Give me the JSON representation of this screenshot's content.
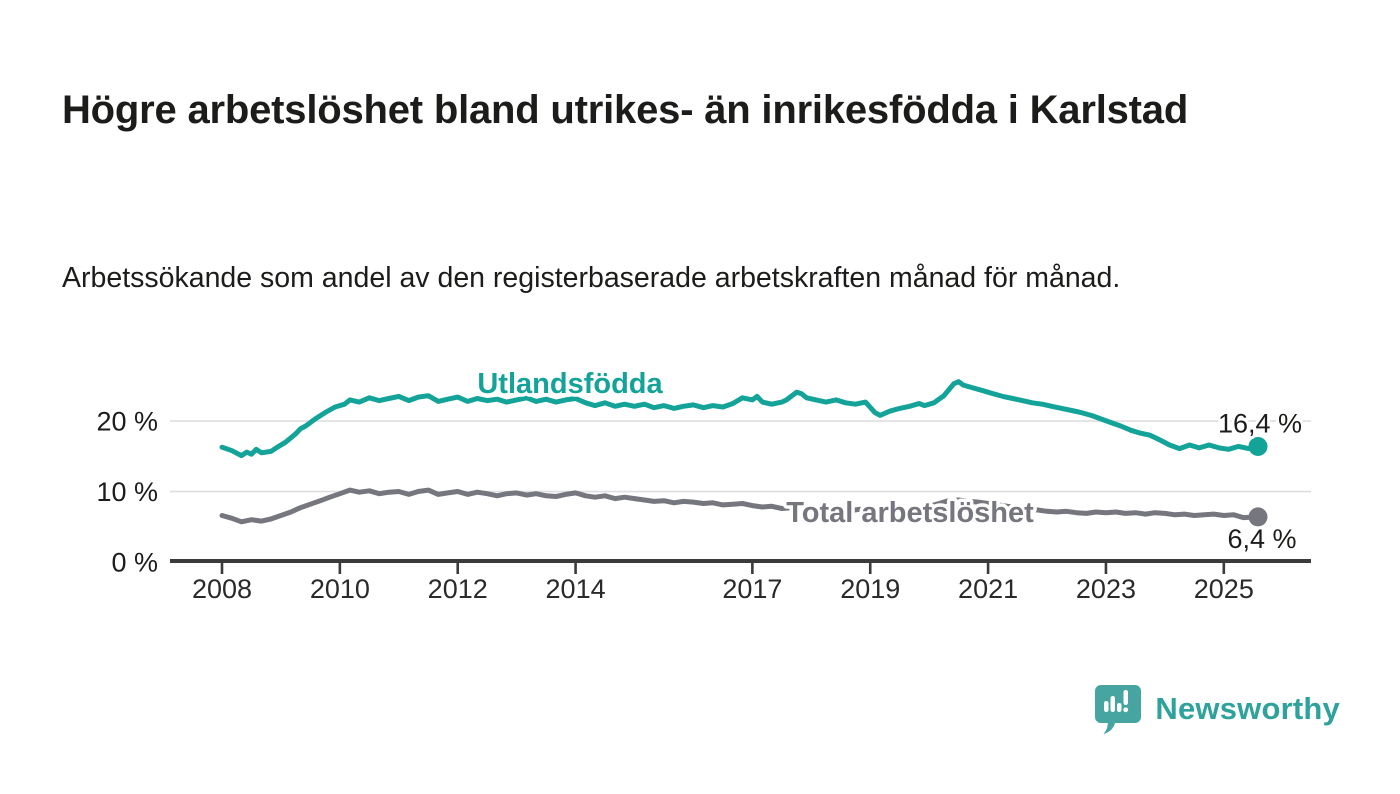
{
  "header": {
    "title": "Högre arbetslöshet bland utrikes- än inrikesfödda i Karlstad",
    "subtitle": "Arbetssökande som andel av den registerbaserade arbetskraften månad för månad."
  },
  "footer": {
    "brand": "Newsworthy",
    "logo_icon": "speech-bubble-bar-chart-icon"
  },
  "colors": {
    "accent_teal": "#14a399",
    "series_gray": "#76767e",
    "grid": "#dedee1",
    "axis": "#3b3b3b",
    "text": "#1c1c1a",
    "brand_icon": "#46a5a0",
    "brand_text": "#2ea29b"
  },
  "chart_data": {
    "type": "line",
    "title": "Högre arbetslöshet bland utrikes- än inrikesfödda i Karlstad",
    "subtitle": "Arbetssökande som andel av den registerbaserade arbetskraften månad för månad.",
    "xlabel": "",
    "ylabel": "",
    "unit": "%",
    "xlim": [
      2007.1,
      2026.5
    ],
    "ylim": [
      0,
      27
    ],
    "grid": "horizontal",
    "legend_position": "inline-labels",
    "x_ticks": [
      2008,
      2010,
      2012,
      2014,
      2017,
      2019,
      2021,
      2023,
      2025
    ],
    "y_ticks": [
      {
        "value": 0,
        "label": "0 %"
      },
      {
        "value": 10,
        "label": "10 %"
      },
      {
        "value": 20,
        "label": "20 %"
      }
    ],
    "series": [
      {
        "name": "Utlandsfödda",
        "color": "#14a399",
        "end_value": 16.4,
        "end_label": "16,4 %",
        "points": [
          [
            2008.0,
            16.3
          ],
          [
            2008.17,
            15.8
          ],
          [
            2008.33,
            15.1
          ],
          [
            2008.42,
            15.6
          ],
          [
            2008.5,
            15.3
          ],
          [
            2008.58,
            16.0
          ],
          [
            2008.67,
            15.5
          ],
          [
            2008.83,
            15.7
          ],
          [
            2008.92,
            16.2
          ],
          [
            2009.08,
            17.0
          ],
          [
            2009.25,
            18.2
          ],
          [
            2009.33,
            18.9
          ],
          [
            2009.42,
            19.3
          ],
          [
            2009.58,
            20.3
          ],
          [
            2009.75,
            21.2
          ],
          [
            2009.92,
            22.0
          ],
          [
            2010.08,
            22.4
          ],
          [
            2010.17,
            23.0
          ],
          [
            2010.33,
            22.7
          ],
          [
            2010.5,
            23.3
          ],
          [
            2010.67,
            22.9
          ],
          [
            2010.83,
            23.2
          ],
          [
            2011.0,
            23.5
          ],
          [
            2011.17,
            22.9
          ],
          [
            2011.33,
            23.4
          ],
          [
            2011.5,
            23.6
          ],
          [
            2011.67,
            22.8
          ],
          [
            2011.83,
            23.1
          ],
          [
            2012.0,
            23.4
          ],
          [
            2012.17,
            22.8
          ],
          [
            2012.33,
            23.2
          ],
          [
            2012.5,
            22.9
          ],
          [
            2012.67,
            23.1
          ],
          [
            2012.83,
            22.7
          ],
          [
            2013.0,
            23.0
          ],
          [
            2013.17,
            23.3
          ],
          [
            2013.33,
            22.8
          ],
          [
            2013.5,
            23.1
          ],
          [
            2013.67,
            22.7
          ],
          [
            2013.83,
            23.0
          ],
          [
            2014.0,
            23.2
          ],
          [
            2014.17,
            22.6
          ],
          [
            2014.33,
            22.2
          ],
          [
            2014.5,
            22.6
          ],
          [
            2014.67,
            22.1
          ],
          [
            2014.83,
            22.4
          ],
          [
            2015.0,
            22.1
          ],
          [
            2015.17,
            22.4
          ],
          [
            2015.33,
            21.9
          ],
          [
            2015.5,
            22.2
          ],
          [
            2015.67,
            21.8
          ],
          [
            2015.83,
            22.1
          ],
          [
            2016.0,
            22.3
          ],
          [
            2016.17,
            21.9
          ],
          [
            2016.33,
            22.2
          ],
          [
            2016.5,
            22.0
          ],
          [
            2016.67,
            22.5
          ],
          [
            2016.83,
            23.3
          ],
          [
            2017.0,
            23.0
          ],
          [
            2017.08,
            23.5
          ],
          [
            2017.17,
            22.7
          ],
          [
            2017.33,
            22.4
          ],
          [
            2017.5,
            22.7
          ],
          [
            2017.58,
            23.0
          ],
          [
            2017.75,
            24.1
          ],
          [
            2017.83,
            23.9
          ],
          [
            2017.92,
            23.3
          ],
          [
            2018.08,
            23.0
          ],
          [
            2018.25,
            22.7
          ],
          [
            2018.42,
            23.0
          ],
          [
            2018.58,
            22.6
          ],
          [
            2018.75,
            22.4
          ],
          [
            2018.92,
            22.7
          ],
          [
            2019.08,
            21.2
          ],
          [
            2019.17,
            20.8
          ],
          [
            2019.33,
            21.4
          ],
          [
            2019.5,
            21.8
          ],
          [
            2019.67,
            22.1
          ],
          [
            2019.83,
            22.5
          ],
          [
            2019.92,
            22.2
          ],
          [
            2020.08,
            22.6
          ],
          [
            2020.25,
            23.6
          ],
          [
            2020.42,
            25.3
          ],
          [
            2020.5,
            25.6
          ],
          [
            2020.58,
            25.1
          ],
          [
            2020.75,
            24.7
          ],
          [
            2020.92,
            24.3
          ],
          [
            2021.08,
            23.9
          ],
          [
            2021.25,
            23.5
          ],
          [
            2021.42,
            23.2
          ],
          [
            2021.58,
            22.9
          ],
          [
            2021.75,
            22.6
          ],
          [
            2021.92,
            22.4
          ],
          [
            2022.08,
            22.1
          ],
          [
            2022.25,
            21.8
          ],
          [
            2022.42,
            21.5
          ],
          [
            2022.58,
            21.2
          ],
          [
            2022.75,
            20.8
          ],
          [
            2022.92,
            20.3
          ],
          [
            2023.08,
            19.8
          ],
          [
            2023.25,
            19.3
          ],
          [
            2023.42,
            18.7
          ],
          [
            2023.58,
            18.3
          ],
          [
            2023.75,
            18.0
          ],
          [
            2023.92,
            17.3
          ],
          [
            2024.08,
            16.6
          ],
          [
            2024.25,
            16.1
          ],
          [
            2024.42,
            16.6
          ],
          [
            2024.58,
            16.2
          ],
          [
            2024.75,
            16.6
          ],
          [
            2024.92,
            16.2
          ],
          [
            2025.08,
            16.0
          ],
          [
            2025.25,
            16.4
          ],
          [
            2025.42,
            16.1
          ],
          [
            2025.58,
            16.4
          ]
        ]
      },
      {
        "name": "Total arbetslöshet",
        "color": "#76767e",
        "end_value": 6.4,
        "end_label": "6,4 %",
        "points": [
          [
            2008.0,
            6.6
          ],
          [
            2008.17,
            6.2
          ],
          [
            2008.33,
            5.7
          ],
          [
            2008.5,
            6.0
          ],
          [
            2008.67,
            5.8
          ],
          [
            2008.83,
            6.1
          ],
          [
            2009.0,
            6.6
          ],
          [
            2009.17,
            7.1
          ],
          [
            2009.33,
            7.7
          ],
          [
            2009.5,
            8.2
          ],
          [
            2009.67,
            8.7
          ],
          [
            2009.83,
            9.2
          ],
          [
            2010.0,
            9.7
          ],
          [
            2010.17,
            10.2
          ],
          [
            2010.33,
            9.9
          ],
          [
            2010.5,
            10.1
          ],
          [
            2010.67,
            9.7
          ],
          [
            2010.83,
            9.9
          ],
          [
            2011.0,
            10.0
          ],
          [
            2011.17,
            9.6
          ],
          [
            2011.33,
            10.0
          ],
          [
            2011.5,
            10.2
          ],
          [
            2011.67,
            9.6
          ],
          [
            2011.83,
            9.8
          ],
          [
            2012.0,
            10.0
          ],
          [
            2012.17,
            9.6
          ],
          [
            2012.33,
            9.9
          ],
          [
            2012.5,
            9.7
          ],
          [
            2012.67,
            9.4
          ],
          [
            2012.83,
            9.7
          ],
          [
            2013.0,
            9.8
          ],
          [
            2013.17,
            9.5
          ],
          [
            2013.33,
            9.7
          ],
          [
            2013.5,
            9.4
          ],
          [
            2013.67,
            9.3
          ],
          [
            2013.83,
            9.6
          ],
          [
            2014.0,
            9.8
          ],
          [
            2014.17,
            9.4
          ],
          [
            2014.33,
            9.2
          ],
          [
            2014.5,
            9.4
          ],
          [
            2014.67,
            9.0
          ],
          [
            2014.83,
            9.2
          ],
          [
            2015.0,
            9.0
          ],
          [
            2015.17,
            8.8
          ],
          [
            2015.33,
            8.6
          ],
          [
            2015.5,
            8.7
          ],
          [
            2015.67,
            8.4
          ],
          [
            2015.83,
            8.6
          ],
          [
            2016.0,
            8.5
          ],
          [
            2016.17,
            8.3
          ],
          [
            2016.33,
            8.4
          ],
          [
            2016.5,
            8.1
          ],
          [
            2016.67,
            8.2
          ],
          [
            2016.83,
            8.3
          ],
          [
            2017.0,
            8.0
          ],
          [
            2017.17,
            7.8
          ],
          [
            2017.33,
            7.9
          ],
          [
            2017.5,
            7.6
          ],
          [
            2017.67,
            7.7
          ],
          [
            2017.83,
            7.8
          ],
          [
            2018.0,
            7.6
          ],
          [
            2018.17,
            7.4
          ],
          [
            2018.33,
            7.5
          ],
          [
            2018.5,
            7.2
          ],
          [
            2018.67,
            7.3
          ],
          [
            2018.83,
            7.5
          ],
          [
            2019.0,
            7.3
          ],
          [
            2019.17,
            7.2
          ],
          [
            2019.33,
            7.4
          ],
          [
            2019.5,
            7.3
          ],
          [
            2019.67,
            7.5
          ],
          [
            2019.83,
            7.7
          ],
          [
            2020.0,
            7.9
          ],
          [
            2020.17,
            8.3
          ],
          [
            2020.33,
            8.7
          ],
          [
            2020.5,
            8.8
          ],
          [
            2020.67,
            8.6
          ],
          [
            2020.83,
            8.5
          ],
          [
            2021.0,
            8.3
          ],
          [
            2021.17,
            8.1
          ],
          [
            2021.33,
            7.9
          ],
          [
            2021.5,
            7.7
          ],
          [
            2021.67,
            7.5
          ],
          [
            2021.83,
            7.4
          ],
          [
            2022.0,
            7.2
          ],
          [
            2022.17,
            7.1
          ],
          [
            2022.33,
            7.2
          ],
          [
            2022.5,
            7.0
          ],
          [
            2022.67,
            6.9
          ],
          [
            2022.83,
            7.1
          ],
          [
            2023.0,
            7.0
          ],
          [
            2023.17,
            7.1
          ],
          [
            2023.33,
            6.9
          ],
          [
            2023.5,
            7.0
          ],
          [
            2023.67,
            6.8
          ],
          [
            2023.83,
            7.0
          ],
          [
            2024.0,
            6.9
          ],
          [
            2024.17,
            6.7
          ],
          [
            2024.33,
            6.8
          ],
          [
            2024.5,
            6.6
          ],
          [
            2024.67,
            6.7
          ],
          [
            2024.83,
            6.8
          ],
          [
            2025.0,
            6.6
          ],
          [
            2025.17,
            6.7
          ],
          [
            2025.33,
            6.3
          ],
          [
            2025.58,
            6.4
          ]
        ]
      }
    ]
  }
}
